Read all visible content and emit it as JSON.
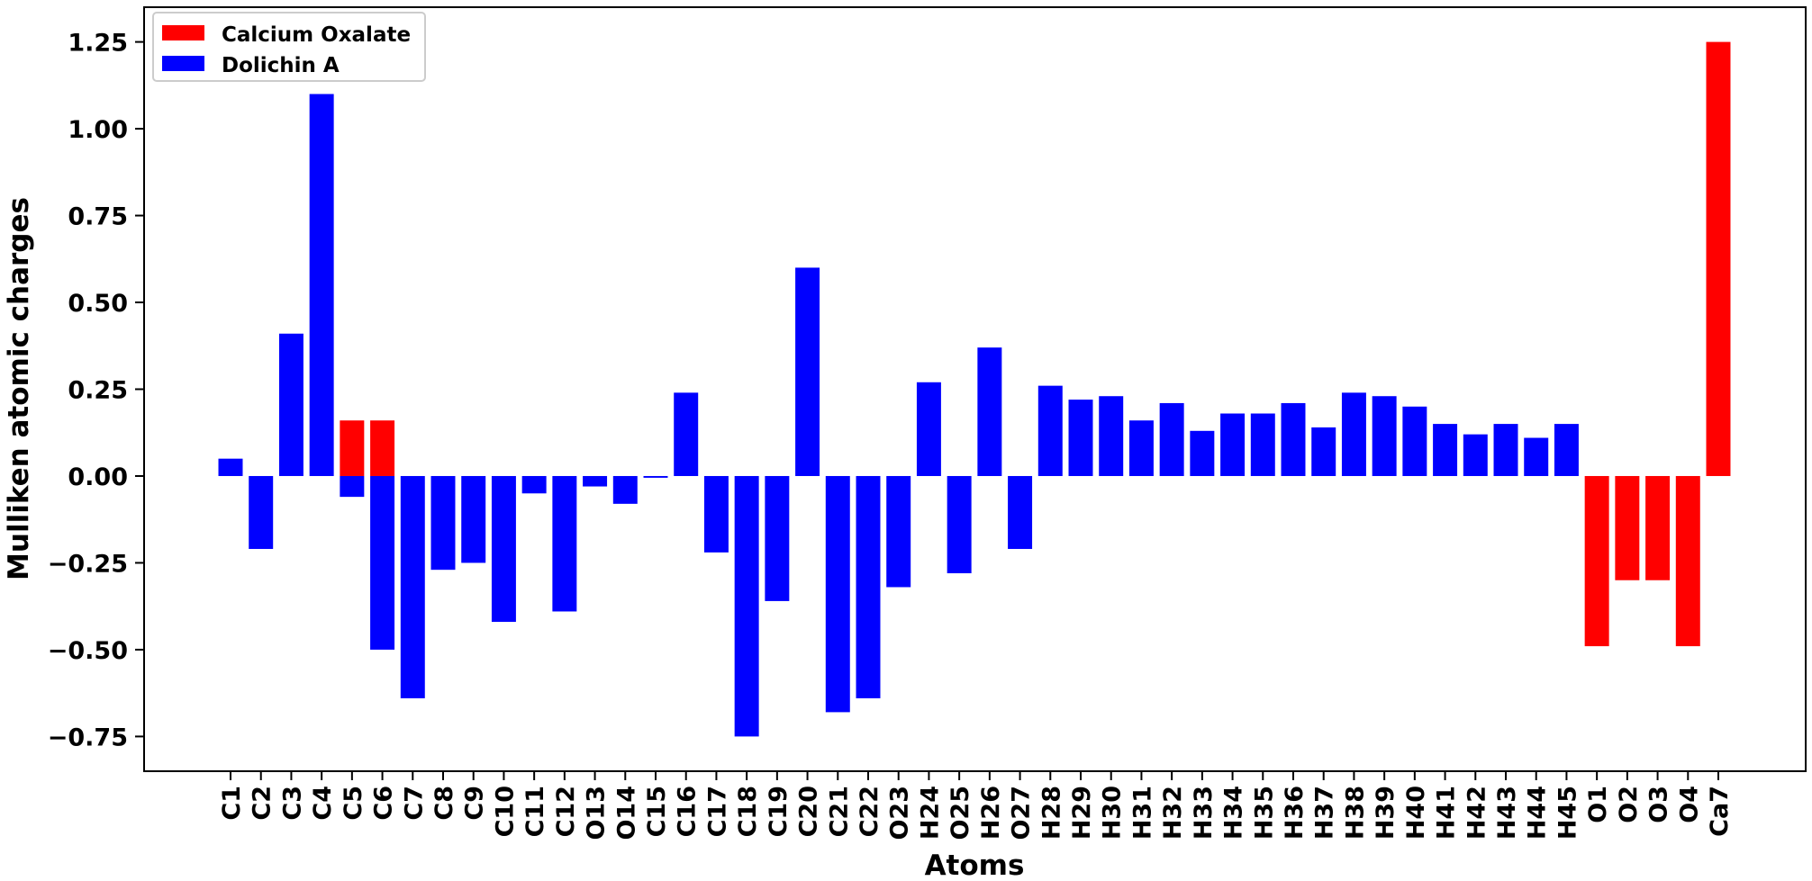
{
  "chart_data": {
    "type": "bar",
    "xlabel": "Atoms",
    "ylabel": "Mulliken atomic charges",
    "ylim": [
      -0.85,
      1.35
    ],
    "yticks": [
      -0.75,
      -0.5,
      -0.25,
      0.0,
      0.25,
      0.5,
      0.75,
      1.0,
      1.25
    ],
    "ytick_labels": [
      "−0.75",
      "−0.50",
      "−0.25",
      "0.00",
      "0.25",
      "0.50",
      "0.75",
      "1.00",
      "1.25"
    ],
    "grid": false,
    "legend_position": "top-left",
    "categories": [
      "C1",
      "C2",
      "C3",
      "C4",
      "C5",
      "C6",
      "C7",
      "C8",
      "C9",
      "C10",
      "C11",
      "C12",
      "O13",
      "O14",
      "C15",
      "C16",
      "C17",
      "C18",
      "C19",
      "C20",
      "C21",
      "C22",
      "O23",
      "H24",
      "O25",
      "H26",
      "O27",
      "H28",
      "H29",
      "H30",
      "H31",
      "H32",
      "H33",
      "H34",
      "H35",
      "H36",
      "H37",
      "H38",
      "H39",
      "H40",
      "H41",
      "H42",
      "H43",
      "H44",
      "H45",
      "O1",
      "O2",
      "O3",
      "O4",
      "Ca7"
    ],
    "series": [
      {
        "name": "Calcium Oxalate",
        "color": "#ff0000",
        "values": [
          null,
          null,
          null,
          null,
          0.16,
          0.16,
          null,
          null,
          null,
          null,
          null,
          null,
          null,
          null,
          null,
          null,
          null,
          null,
          null,
          null,
          null,
          null,
          null,
          null,
          null,
          null,
          null,
          null,
          null,
          null,
          null,
          null,
          null,
          null,
          null,
          null,
          null,
          null,
          null,
          null,
          null,
          null,
          null,
          null,
          null,
          -0.49,
          -0.3,
          -0.3,
          -0.49,
          1.25
        ]
      },
      {
        "name": "Dolichin A",
        "color": "#0000ff",
        "values": [
          0.05,
          -0.21,
          0.41,
          1.1,
          -0.06,
          -0.5,
          -0.64,
          -0.27,
          -0.25,
          -0.42,
          -0.05,
          -0.39,
          -0.03,
          -0.08,
          -0.005,
          0.24,
          -0.22,
          -0.75,
          -0.36,
          0.6,
          -0.68,
          -0.64,
          -0.32,
          0.27,
          -0.28,
          0.37,
          -0.21,
          0.26,
          0.22,
          0.23,
          0.16,
          0.21,
          0.13,
          0.18,
          0.18,
          0.21,
          0.14,
          0.24,
          0.23,
          0.2,
          0.15,
          0.12,
          0.15,
          0.11,
          0.15,
          null,
          null,
          null,
          null,
          null
        ]
      }
    ]
  }
}
